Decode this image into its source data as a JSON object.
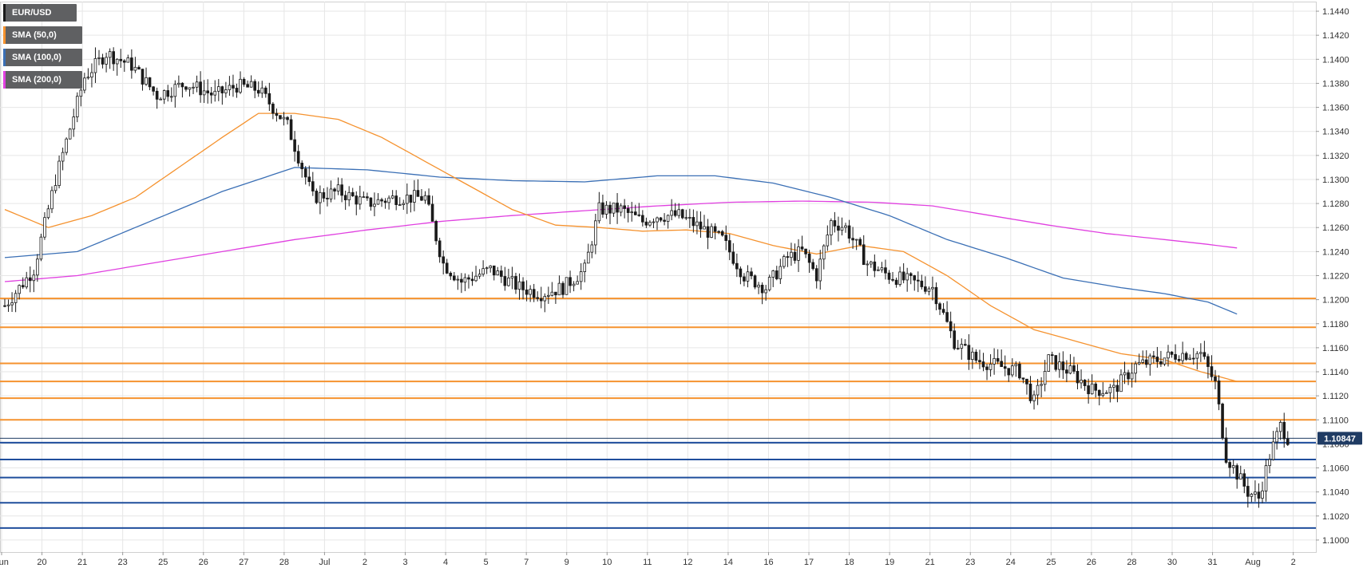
{
  "legend": [
    {
      "label": "EUR/USD",
      "color": "#1a1a1a"
    },
    {
      "label": "SMA (50,0)",
      "color": "#f5922e"
    },
    {
      "label": "SMA (100,0)",
      "color": "#3a6fb5"
    },
    {
      "label": "SMA (200,0)",
      "color": "#e040e0"
    }
  ],
  "price_label": "1.10847",
  "chart_data": {
    "type": "candlestick",
    "symbol": "EUR/USD",
    "y_range": [
      1.099,
      1.1448
    ],
    "y_ticks": [
      "1.1000",
      "1.1020",
      "1.1040",
      "1.1060",
      "1.1080",
      "1.1100",
      "1.1120",
      "1.1140",
      "1.1160",
      "1.1180",
      "1.1200",
      "1.1220",
      "1.1240",
      "1.1260",
      "1.1280",
      "1.1300",
      "1.1320",
      "1.1340",
      "1.1360",
      "1.1380",
      "1.1400",
      "1.1420",
      "1.1440"
    ],
    "x_labels": [
      "Jun",
      "20",
      "21",
      "23",
      "25",
      "26",
      "27",
      "28",
      "Jul",
      "2",
      "3",
      "4",
      "5",
      "7",
      "9",
      "10",
      "11",
      "12",
      "14",
      "16",
      "17",
      "18",
      "19",
      "21",
      "23",
      "24",
      "25",
      "26",
      "28",
      "30",
      "31",
      "Aug",
      "2"
    ],
    "current_price": 1.10847,
    "colors": {
      "up": "#ffffff",
      "down": "#1a1a1a",
      "wick": "#1a1a1a",
      "resistance": "#f5922e",
      "support": "#1f4e9c",
      "sma50": "#f5922e",
      "sma100": "#3a6fb5",
      "sma200": "#e040e0",
      "grid": "#e6e6e6"
    },
    "resistance_levels": [
      1.1201,
      1.1177,
      1.1147,
      1.1132,
      1.1118,
      1.11
    ],
    "support_levels": [
      1.1081,
      1.1067,
      1.1052,
      1.1031,
      1.101
    ],
    "price_path": [
      [
        0,
        1.1195
      ],
      [
        8,
        1.1225
      ],
      [
        14,
        1.13
      ],
      [
        22,
        1.1385
      ],
      [
        28,
        1.1405
      ],
      [
        35,
        1.1395
      ],
      [
        42,
        1.137
      ],
      [
        50,
        1.138
      ],
      [
        58,
        1.137
      ],
      [
        64,
        1.1378
      ],
      [
        70,
        1.1375
      ],
      [
        78,
        1.1345
      ],
      [
        85,
        1.1285
      ],
      [
        92,
        1.129
      ],
      [
        100,
        1.128
      ],
      [
        108,
        1.1285
      ],
      [
        116,
        1.1285
      ],
      [
        121,
        1.123
      ],
      [
        126,
        1.1215
      ],
      [
        134,
        1.1225
      ],
      [
        142,
        1.121
      ],
      [
        148,
        1.1205
      ],
      [
        154,
        1.121
      ],
      [
        160,
        1.1225
      ],
      [
        164,
        1.1275
      ],
      [
        170,
        1.1275
      ],
      [
        176,
        1.1265
      ],
      [
        180,
        1.127
      ],
      [
        186,
        1.127
      ],
      [
        192,
        1.126
      ],
      [
        198,
        1.125
      ],
      [
        204,
        1.122
      ],
      [
        210,
        1.121
      ],
      [
        216,
        1.1235
      ],
      [
        220,
        1.124
      ],
      [
        224,
        1.122
      ],
      [
        228,
        1.1265
      ],
      [
        232,
        1.126
      ],
      [
        238,
        1.123
      ],
      [
        244,
        1.122
      ],
      [
        250,
        1.1215
      ],
      [
        256,
        1.121
      ],
      [
        262,
        1.1165
      ],
      [
        268,
        1.115
      ],
      [
        274,
        1.1145
      ],
      [
        280,
        1.114
      ],
      [
        284,
        1.1115
      ],
      [
        288,
        1.115
      ],
      [
        294,
        1.114
      ],
      [
        300,
        1.1125
      ],
      [
        306,
        1.1125
      ],
      [
        312,
        1.1145
      ],
      [
        318,
        1.115
      ],
      [
        324,
        1.1155
      ],
      [
        330,
        1.1155
      ],
      [
        334,
        1.113
      ],
      [
        337,
        1.107
      ],
      [
        340,
        1.1055
      ],
      [
        343,
        1.104
      ],
      [
        346,
        1.1035
      ],
      [
        349,
        1.107
      ],
      [
        352,
        1.1095
      ],
      [
        354,
        1.1085
      ]
    ],
    "sma50_path": [
      [
        0,
        1.1275
      ],
      [
        12,
        1.126
      ],
      [
        24,
        1.127
      ],
      [
        36,
        1.1285
      ],
      [
        48,
        1.131
      ],
      [
        60,
        1.1335
      ],
      [
        70,
        1.1355
      ],
      [
        80,
        1.1355
      ],
      [
        92,
        1.135
      ],
      [
        104,
        1.1335
      ],
      [
        116,
        1.1315
      ],
      [
        128,
        1.1295
      ],
      [
        140,
        1.1275
      ],
      [
        152,
        1.1262
      ],
      [
        164,
        1.126
      ],
      [
        176,
        1.1257
      ],
      [
        188,
        1.1258
      ],
      [
        200,
        1.1255
      ],
      [
        212,
        1.1245
      ],
      [
        224,
        1.1238
      ],
      [
        236,
        1.1245
      ],
      [
        248,
        1.124
      ],
      [
        260,
        1.122
      ],
      [
        272,
        1.1195
      ],
      [
        284,
        1.1175
      ],
      [
        296,
        1.1165
      ],
      [
        308,
        1.1155
      ],
      [
        320,
        1.115
      ],
      [
        330,
        1.114
      ],
      [
        340,
        1.1132
      ]
    ],
    "sma100_path": [
      [
        0,
        1.1235
      ],
      [
        20,
        1.124
      ],
      [
        40,
        1.1265
      ],
      [
        60,
        1.129
      ],
      [
        80,
        1.131
      ],
      [
        100,
        1.1308
      ],
      [
        120,
        1.1302
      ],
      [
        140,
        1.1299
      ],
      [
        160,
        1.1298
      ],
      [
        180,
        1.1303
      ],
      [
        196,
        1.1303
      ],
      [
        212,
        1.1297
      ],
      [
        228,
        1.1285
      ],
      [
        244,
        1.127
      ],
      [
        260,
        1.125
      ],
      [
        276,
        1.1235
      ],
      [
        292,
        1.1218
      ],
      [
        308,
        1.121
      ],
      [
        320,
        1.1205
      ],
      [
        332,
        1.1198
      ],
      [
        340,
        1.1188
      ]
    ],
    "sma200_path": [
      [
        0,
        1.1215
      ],
      [
        20,
        1.122
      ],
      [
        40,
        1.123
      ],
      [
        60,
        1.124
      ],
      [
        80,
        1.125
      ],
      [
        100,
        1.1258
      ],
      [
        120,
        1.1265
      ],
      [
        140,
        1.127
      ],
      [
        160,
        1.1274
      ],
      [
        180,
        1.1278
      ],
      [
        200,
        1.1281
      ],
      [
        220,
        1.1282
      ],
      [
        240,
        1.1281
      ],
      [
        256,
        1.1278
      ],
      [
        272,
        1.127
      ],
      [
        288,
        1.1262
      ],
      [
        304,
        1.1255
      ],
      [
        320,
        1.125
      ],
      [
        332,
        1.1246
      ],
      [
        340,
        1.1243
      ]
    ]
  }
}
